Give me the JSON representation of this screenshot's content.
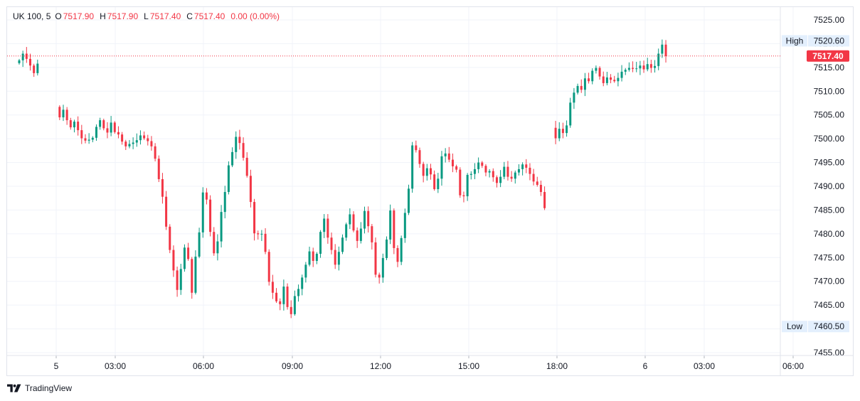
{
  "legend": {
    "symbol": "UK 100, 5",
    "open_label": "O",
    "open": "7517.90",
    "high_label": "H",
    "high": "7517.90",
    "low_label": "L",
    "low": "7517.40",
    "close_label": "C",
    "close": "7517.40",
    "change": "0.00 (0.00%)"
  },
  "branding": {
    "name": "TradingView",
    "logo_icon": "tradingview-logo-icon"
  },
  "colors": {
    "up": "#089981",
    "down": "#f23645",
    "grid": "#f0f3fa",
    "label_bg": "#e3effd"
  },
  "chart_data": {
    "type": "candlestick",
    "yticks": [
      "7525.00",
      "7520.00",
      "7515.00",
      "7510.00",
      "7505.00",
      "7500.00",
      "7495.00",
      "7490.00",
      "7485.00",
      "7480.00",
      "7475.00",
      "7470.00",
      "7465.00",
      "7460.00",
      "7455.00"
    ],
    "ylim": [
      7455,
      7525
    ],
    "xticks": [
      "5",
      "03:00",
      "06:00",
      "09:00",
      "12:00",
      "15:00",
      "18:00",
      "6",
      "03:00",
      "06:00"
    ],
    "current_price": "7517.40",
    "high": {
      "label": "High",
      "value": "7520.60"
    },
    "low": {
      "label": "Low",
      "value": "7460.50"
    },
    "grid": true,
    "series_close": [
      [
        0,
        7516.5
      ],
      [
        0.5,
        7517.9
      ],
      [
        1,
        7516.8
      ],
      [
        1.5,
        7515.4
      ],
      [
        2,
        7513.8
      ],
      [
        2.5,
        7515.8
      ],
      [
        5.5,
        7504.5
      ],
      [
        6,
        7506.1
      ],
      [
        6.5,
        7503.9
      ],
      [
        7,
        7502.4
      ],
      [
        7.5,
        7503.6
      ],
      [
        8,
        7501.8
      ],
      [
        8.5,
        7500.1
      ],
      [
        9,
        7499.6
      ],
      [
        9.5,
        7499.8
      ],
      [
        10,
        7500.2
      ],
      [
        10.5,
        7502.5
      ],
      [
        11,
        7503.9
      ],
      [
        11.5,
        7502.2
      ],
      [
        12,
        7501.3
      ],
      [
        12.5,
        7503.4
      ],
      [
        13,
        7501.4
      ],
      [
        13.5,
        7500.9
      ],
      [
        14,
        7499.4
      ],
      [
        14.5,
        7498.4
      ],
      [
        15,
        7498.9
      ],
      [
        15.5,
        7499.2
      ],
      [
        16,
        7499.7
      ],
      [
        16.5,
        7500.7
      ],
      [
        17,
        7500.1
      ],
      [
        17.5,
        7499.5
      ],
      [
        18,
        7498.4
      ],
      [
        18.5,
        7495.8
      ],
      [
        19,
        7491.5
      ],
      [
        19.5,
        7487.8
      ],
      [
        20,
        7481.5
      ],
      [
        20.5,
        7476.6
      ],
      [
        21,
        7472.3
      ],
      [
        21.5,
        7468.2
      ],
      [
        22,
        7472.6
      ],
      [
        22.5,
        7477.1
      ],
      [
        23,
        7474.7
      ],
      [
        23.5,
        7467.6
      ],
      [
        24,
        7475.2
      ],
      [
        24.5,
        7480.3
      ],
      [
        25,
        7488.7
      ],
      [
        25.5,
        7487.2
      ],
      [
        26,
        7480.4
      ],
      [
        26.5,
        7475.9
      ],
      [
        27,
        7478.4
      ],
      [
        27.5,
        7484.6
      ],
      [
        28,
        7488.8
      ],
      [
        28.5,
        7494.4
      ],
      [
        29,
        7497.2
      ],
      [
        29.5,
        7500.4
      ],
      [
        30,
        7499.1
      ],
      [
        30.5,
        7496.0
      ],
      [
        31,
        7492.2
      ],
      [
        31.5,
        7486.7
      ],
      [
        32,
        7480.1
      ],
      [
        32.5,
        7479.9
      ],
      [
        33,
        7480.0
      ],
      [
        33.5,
        7476.2
      ],
      [
        34,
        7469.9
      ],
      [
        34.5,
        7467.6
      ],
      [
        35,
        7465.8
      ],
      [
        35.5,
        7465.2
      ],
      [
        36,
        7468.9
      ],
      [
        36.5,
        7464.6
      ],
      [
        37,
        7463.1
      ],
      [
        37.5,
        7466.9
      ],
      [
        38,
        7468.4
      ],
      [
        38.5,
        7470.8
      ],
      [
        39,
        7473.5
      ],
      [
        39.5,
        7476.3
      ],
      [
        40,
        7474.3
      ],
      [
        40.5,
        7475.8
      ],
      [
        41,
        7480.4
      ],
      [
        41.5,
        7483.2
      ],
      [
        42,
        7479.2
      ],
      [
        42.5,
        7476.6
      ],
      [
        43,
        7473.5
      ],
      [
        43.5,
        7476.2
      ],
      [
        44,
        7479.2
      ],
      [
        44.5,
        7482.0
      ],
      [
        45,
        7484.1
      ],
      [
        45.5,
        7480.7
      ],
      [
        46,
        7478.5
      ],
      [
        46.5,
        7481.1
      ],
      [
        47,
        7484.8
      ],
      [
        47.5,
        7481.6
      ],
      [
        48,
        7478.2
      ],
      [
        48.5,
        7471.4
      ],
      [
        49,
        7470.8
      ],
      [
        49.5,
        7474.9
      ],
      [
        50,
        7478.8
      ],
      [
        50.5,
        7484.9
      ],
      [
        51,
        7477.0
      ],
      [
        51.5,
        7474.1
      ],
      [
        52,
        7479.1
      ],
      [
        52.5,
        7484.4
      ],
      [
        53,
        7489.5
      ],
      [
        53.5,
        7498.6
      ],
      [
        54,
        7497.6
      ],
      [
        54.5,
        7494.7
      ],
      [
        55,
        7492.2
      ],
      [
        55.5,
        7493.8
      ],
      [
        56,
        7492.5
      ],
      [
        56.5,
        7489.4
      ],
      [
        57,
        7491.6
      ],
      [
        57.5,
        7496.3
      ],
      [
        58,
        7496.9
      ],
      [
        58.5,
        7495.6
      ],
      [
        59,
        7494.2
      ],
      [
        59.5,
        7493.5
      ],
      [
        60,
        7488.1
      ],
      [
        60.5,
        7487.9
      ],
      [
        61,
        7492.4
      ],
      [
        61.5,
        7492.6
      ],
      [
        62,
        7493.6
      ],
      [
        62.5,
        7495.0
      ],
      [
        63,
        7494.3
      ],
      [
        63.5,
        7492.9
      ],
      [
        64,
        7493.2
      ],
      [
        64.5,
        7491.9
      ],
      [
        65,
        7490.7
      ],
      [
        65.5,
        7492.0
      ],
      [
        66,
        7494.1
      ],
      [
        66.5,
        7492.0
      ],
      [
        67,
        7491.6
      ],
      [
        67.5,
        7492.9
      ],
      [
        68,
        7493.6
      ],
      [
        68.5,
        7494.6
      ],
      [
        69,
        7493.9
      ],
      [
        69.5,
        7492.6
      ],
      [
        70,
        7491.0
      ],
      [
        70.5,
        7490.3
      ],
      [
        71,
        7488.8
      ],
      [
        71.5,
        7485.4
      ],
      [
        73,
        7500.1
      ],
      [
        73.5,
        7502.1
      ],
      [
        74,
        7501.2
      ],
      [
        74.5,
        7502.8
      ],
      [
        75,
        7507.6
      ],
      [
        75.5,
        7509.7
      ],
      [
        76,
        7511.1
      ],
      [
        76.5,
        7510.3
      ],
      [
        77,
        7512.7
      ],
      [
        77.5,
        7512.1
      ],
      [
        78,
        7514.3
      ],
      [
        78.5,
        7514.9
      ],
      [
        79,
        7513.1
      ],
      [
        79.5,
        7511.7
      ],
      [
        80,
        7512.9
      ],
      [
        80.5,
        7512.4
      ],
      [
        81,
        7512.1
      ],
      [
        81.5,
        7512.8
      ],
      [
        82,
        7514.1
      ],
      [
        82.5,
        7514.5
      ],
      [
        83,
        7514.9
      ],
      [
        83.5,
        7514.7
      ],
      [
        84,
        7514.8
      ],
      [
        84.5,
        7515.4
      ],
      [
        85,
        7514.6
      ],
      [
        85.5,
        7515.7
      ],
      [
        86,
        7514.9
      ],
      [
        86.5,
        7515.3
      ],
      [
        87,
        7517.9
      ],
      [
        87.5,
        7519.8
      ],
      [
        88,
        7517.4
      ]
    ]
  }
}
